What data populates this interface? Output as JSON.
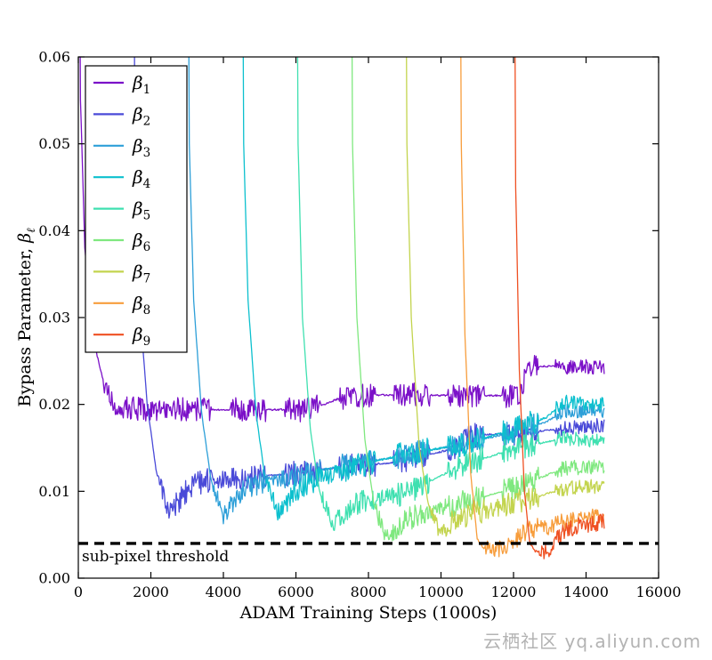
{
  "figure": {
    "background": "#ffffff",
    "frame_color": "#000000",
    "text_color": "#000000"
  },
  "chart_data": {
    "type": "line",
    "title": "",
    "xlabel": "ADAM Training Steps (1000s)",
    "ylabel": {
      "prefix": "Bypass Parameter, ",
      "symbol": "β",
      "subscript": "ℓ"
    },
    "xlim": [
      0,
      16
    ],
    "ylim": [
      0,
      0.06
    ],
    "grid": false,
    "legend_position": "upper left",
    "xticks": {
      "values": [
        0,
        2,
        4,
        6,
        8,
        10,
        12,
        14,
        16
      ],
      "labels": [
        "0",
        "2000",
        "4000",
        "6000",
        "8000",
        "10000",
        "12000",
        "14000",
        "16000"
      ]
    },
    "yticks": {
      "values": [
        0,
        0.01,
        0.02,
        0.03,
        0.04,
        0.05,
        0.06
      ],
      "labels": [
        "0.00",
        "0.01",
        "0.02",
        "0.03",
        "0.04",
        "0.05",
        "0.06"
      ]
    },
    "threshold": {
      "y": 0.004,
      "label": "sub-pixel threshold",
      "color": "#000000",
      "style": "dashed"
    },
    "watermark": "云栖社区 yq.aliyun.com",
    "series": [
      {
        "name": "beta_1",
        "symbol": "β",
        "subscript": "1",
        "color": "#7b10c8",
        "start": 0,
        "points": [
          [
            0,
            0.1
          ],
          [
            0.06,
            0.055
          ],
          [
            0.18,
            0.038
          ],
          [
            0.38,
            0.028
          ],
          [
            0.7,
            0.0225
          ],
          [
            1.0,
            0.0197
          ],
          [
            2.0,
            0.0194
          ],
          [
            6.4,
            0.0194
          ],
          [
            7.2,
            0.0207
          ],
          [
            8.0,
            0.0211
          ],
          [
            12.15,
            0.021
          ],
          [
            12.4,
            0.0244
          ],
          [
            14.5,
            0.0243
          ]
        ]
      },
      {
        "name": "beta_2",
        "symbol": "β",
        "subscript": "2",
        "color": "#4a4ad8",
        "start": 1.5,
        "points": [
          [
            1.5,
            0.1
          ],
          [
            1.56,
            0.05
          ],
          [
            1.68,
            0.032
          ],
          [
            1.9,
            0.02
          ],
          [
            2.15,
            0.0122
          ],
          [
            2.5,
            0.0076
          ],
          [
            2.8,
            0.009
          ],
          [
            3.1,
            0.0106
          ],
          [
            3.6,
            0.0113
          ],
          [
            4.4,
            0.0114
          ],
          [
            5.2,
            0.0118
          ],
          [
            6.0,
            0.0121
          ],
          [
            7.5,
            0.0129
          ],
          [
            9.0,
            0.0134
          ],
          [
            10.3,
            0.0149
          ],
          [
            10.8,
            0.0164
          ],
          [
            12.0,
            0.0167
          ],
          [
            13.2,
            0.0171
          ],
          [
            14.5,
            0.0176
          ]
        ]
      },
      {
        "name": "beta_3",
        "symbol": "β",
        "subscript": "3",
        "color": "#2d9fd8",
        "start": 3,
        "points": [
          [
            3.0,
            0.1
          ],
          [
            3.06,
            0.05
          ],
          [
            3.18,
            0.032
          ],
          [
            3.4,
            0.019
          ],
          [
            3.65,
            0.0115
          ],
          [
            4.0,
            0.0071
          ],
          [
            4.35,
            0.0092
          ],
          [
            4.7,
            0.0106
          ],
          [
            5.3,
            0.0114
          ],
          [
            6.0,
            0.0119
          ],
          [
            7.5,
            0.0131
          ],
          [
            9.0,
            0.0141
          ],
          [
            10.5,
            0.0154
          ],
          [
            12.0,
            0.0168
          ],
          [
            12.9,
            0.018
          ],
          [
            13.4,
            0.0192
          ],
          [
            14.5,
            0.0193
          ]
        ]
      },
      {
        "name": "beta_4",
        "symbol": "β",
        "subscript": "4",
        "color": "#0cc0ce",
        "start": 4.5,
        "points": [
          [
            4.5,
            0.1
          ],
          [
            4.56,
            0.05
          ],
          [
            4.68,
            0.032
          ],
          [
            4.9,
            0.019
          ],
          [
            5.15,
            0.0115
          ],
          [
            5.5,
            0.0076
          ],
          [
            5.85,
            0.0095
          ],
          [
            6.2,
            0.0107
          ],
          [
            6.8,
            0.0117
          ],
          [
            7.5,
            0.0127
          ],
          [
            9.0,
            0.0143
          ],
          [
            10.5,
            0.0153
          ],
          [
            12.0,
            0.0171
          ],
          [
            12.9,
            0.0185
          ],
          [
            13.4,
            0.0203
          ],
          [
            14.5,
            0.02
          ]
        ]
      },
      {
        "name": "beta_5",
        "symbol": "β",
        "subscript": "5",
        "color": "#3fe0b0",
        "start": 6,
        "points": [
          [
            6.0,
            0.1
          ],
          [
            6.06,
            0.05
          ],
          [
            6.18,
            0.03
          ],
          [
            6.4,
            0.017
          ],
          [
            6.65,
            0.01
          ],
          [
            7.0,
            0.0061
          ],
          [
            7.4,
            0.008
          ],
          [
            7.8,
            0.0088
          ],
          [
            8.5,
            0.0093
          ],
          [
            9.0,
            0.0098
          ],
          [
            10.2,
            0.0122
          ],
          [
            10.7,
            0.0131
          ],
          [
            12.0,
            0.0149
          ],
          [
            13.4,
            0.0161
          ],
          [
            14.5,
            0.0158
          ]
        ]
      },
      {
        "name": "beta_6",
        "symbol": "β",
        "subscript": "6",
        "color": "#7fe87f",
        "start": 7.5,
        "points": [
          [
            7.5,
            0.1
          ],
          [
            7.56,
            0.05
          ],
          [
            7.68,
            0.03
          ],
          [
            7.9,
            0.016
          ],
          [
            8.15,
            0.0085
          ],
          [
            8.5,
            0.0046
          ],
          [
            8.9,
            0.0063
          ],
          [
            9.4,
            0.0074
          ],
          [
            10.0,
            0.008
          ],
          [
            10.5,
            0.0086
          ],
          [
            12.0,
            0.0103
          ],
          [
            13.4,
            0.0127
          ],
          [
            14.5,
            0.0128
          ]
        ]
      },
      {
        "name": "beta_7",
        "symbol": "β",
        "subscript": "7",
        "color": "#c3d44e",
        "start": 9,
        "points": [
          [
            9.0,
            0.1
          ],
          [
            9.06,
            0.05
          ],
          [
            9.18,
            0.03
          ],
          [
            9.4,
            0.015
          ],
          [
            9.65,
            0.0085
          ],
          [
            10.0,
            0.0051
          ],
          [
            10.4,
            0.0068
          ],
          [
            10.8,
            0.0075
          ],
          [
            11.4,
            0.0079
          ],
          [
            12.0,
            0.0086
          ],
          [
            13.4,
            0.0103
          ],
          [
            14.5,
            0.0106
          ]
        ]
      },
      {
        "name": "beta_8",
        "symbol": "β",
        "subscript": "8",
        "color": "#f79d3c",
        "start": 10.5,
        "points": [
          [
            10.5,
            0.1
          ],
          [
            10.56,
            0.05
          ],
          [
            10.66,
            0.028
          ],
          [
            10.82,
            0.012
          ],
          [
            11.0,
            0.0045
          ],
          [
            11.15,
            0.0035
          ],
          [
            11.8,
            0.0033
          ],
          [
            12.1,
            0.0047
          ],
          [
            12.35,
            0.0058
          ],
          [
            12.9,
            0.0059
          ],
          [
            13.3,
            0.0064
          ],
          [
            13.9,
            0.007
          ],
          [
            14.5,
            0.0073
          ]
        ]
      },
      {
        "name": "beta_9",
        "symbol": "β",
        "subscript": "9",
        "color": "#ef5022",
        "start": 12,
        "points": [
          [
            12.0,
            0.1
          ],
          [
            12.06,
            0.045
          ],
          [
            12.16,
            0.024
          ],
          [
            12.3,
            0.01
          ],
          [
            12.45,
            0.004
          ],
          [
            12.6,
            0.0031
          ],
          [
            13.0,
            0.003
          ],
          [
            13.25,
            0.0048
          ],
          [
            13.5,
            0.0057
          ],
          [
            14.0,
            0.0061
          ],
          [
            14.5,
            0.0065
          ]
        ]
      }
    ]
  }
}
